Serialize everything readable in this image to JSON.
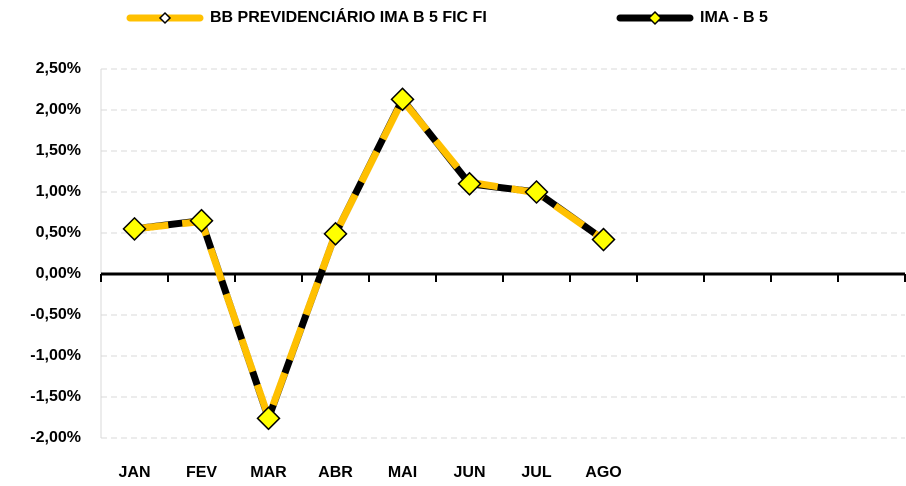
{
  "chart_data": {
    "type": "line",
    "categories": [
      "JAN",
      "FEV",
      "MAR",
      "ABR",
      "MAI",
      "JUN",
      "JUL",
      "AGO",
      null,
      null,
      null,
      null
    ],
    "series": [
      {
        "name": "BB PREVIDENCIÁRIO IMA B 5 FIC FI",
        "color": "#FFC000",
        "values": [
          0.55,
          0.64,
          -1.75,
          0.49,
          2.12,
          1.12,
          0.99,
          0.42,
          null,
          null,
          null,
          null
        ]
      },
      {
        "name": "IMA - B 5",
        "color": "#000000",
        "values": [
          0.55,
          0.65,
          -1.76,
          0.49,
          2.13,
          1.1,
          1.0,
          0.42,
          null,
          null,
          null,
          null
        ]
      }
    ],
    "ylim": [
      -2.0,
      2.5
    ],
    "yticks": [
      {
        "value": -2.0,
        "label": "-2,00%"
      },
      {
        "value": -1.5,
        "label": "-1,50%"
      },
      {
        "value": -1.0,
        "label": "-1,00%"
      },
      {
        "value": -0.5,
        "label": "-0,50%"
      },
      {
        "value": 0,
        "label": "0,00%"
      },
      {
        "value": 0.5,
        "label": "0,50%"
      },
      {
        "value": 1.0,
        "label": "1,00%"
      },
      {
        "value": 1.5,
        "label": "1,50%"
      },
      {
        "value": 2.0,
        "label": "2,00%"
      },
      {
        "value": 2.5,
        "label": "2,50%"
      }
    ],
    "grid": true
  }
}
